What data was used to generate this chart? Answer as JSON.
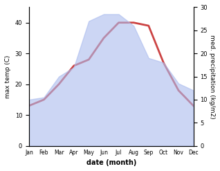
{
  "months": [
    "Jan",
    "Feb",
    "Mar",
    "Apr",
    "May",
    "Jun",
    "Jul",
    "Aug",
    "Sep",
    "Oct",
    "Nov",
    "Dec"
  ],
  "temp": [
    13,
    15,
    20,
    26,
    28,
    35,
    40,
    40,
    39,
    27,
    18,
    13
  ],
  "precip": [
    10,
    10.5,
    15,
    17,
    27,
    28.5,
    28.5,
    26,
    19,
    18,
    13.5,
    12
  ],
  "temp_ylim": [
    0,
    45
  ],
  "precip_ylim": [
    0,
    30
  ],
  "temp_yticks": [
    0,
    10,
    20,
    30,
    40
  ],
  "precip_yticks": [
    0,
    5,
    10,
    15,
    20,
    25,
    30
  ],
  "xlabel": "date (month)",
  "ylabel_left": "max temp (C)",
  "ylabel_right": "med. precipitation (kg/m2)",
  "area_color": "#aabbee",
  "area_alpha": 0.6,
  "line_color": "#cc4444",
  "line_width": 2.0,
  "bg_color": "#ffffff"
}
